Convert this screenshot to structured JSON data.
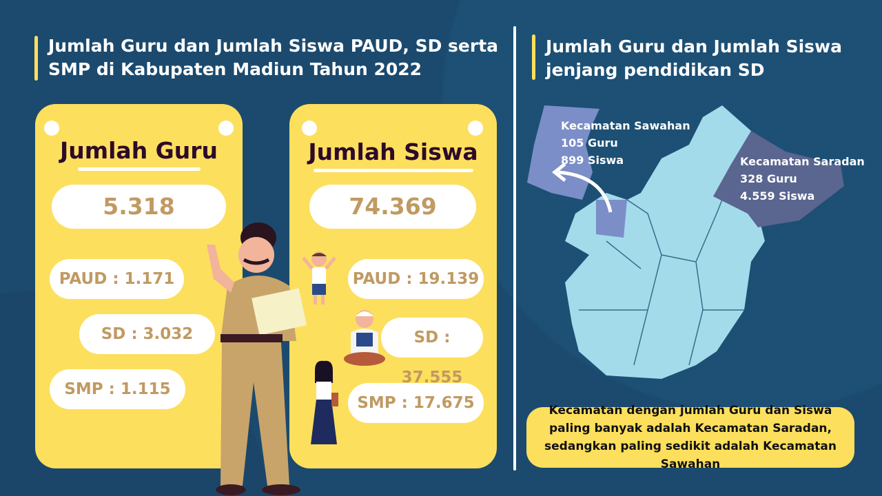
{
  "left_panel": {
    "title_line1": "Jumlah Guru dan Jumlah Siswa PAUD, SD serta",
    "title_line2": "SMP di Kabupaten Madiun Tahun 2022",
    "guru_card": {
      "heading": "Jumlah Guru",
      "total": "5.318",
      "items": [
        "PAUD : 1.171",
        "SD : 3.032",
        "SMP : 1.115"
      ]
    },
    "siswa_card": {
      "heading": "Jumlah Siswa",
      "total": "74.369",
      "items": [
        "PAUD : 19.139",
        "SD : 37.555",
        "SMP : 17.675"
      ]
    }
  },
  "right_panel": {
    "title_line1": "Jumlah Guru dan Jumlah Siswa",
    "title_line2": "jenjang pendidikan SD",
    "sawahan": {
      "name": "Kecamatan Sawahan",
      "guru": "105 Guru",
      "siswa": "899 Siswa"
    },
    "saradan": {
      "name": "Kecamatan Saradan",
      "guru": "328 Guru",
      "siswa": "4.559 Siswa"
    },
    "conclusion": "Kecamatan dengan jumlah Guru dan Siswa paling banyak adalah Kecamatan Saradan, sedangkan paling sedikit adalah Kecamatan Sawahan"
  },
  "colors": {
    "background": "#1c4a6e",
    "accent_yellow": "#fddf5e",
    "value_brown": "#c09a62",
    "map_base": "#a3dbea",
    "sawahan_highlight": "#7b8ec8",
    "saradan_highlight": "#5a6590"
  }
}
